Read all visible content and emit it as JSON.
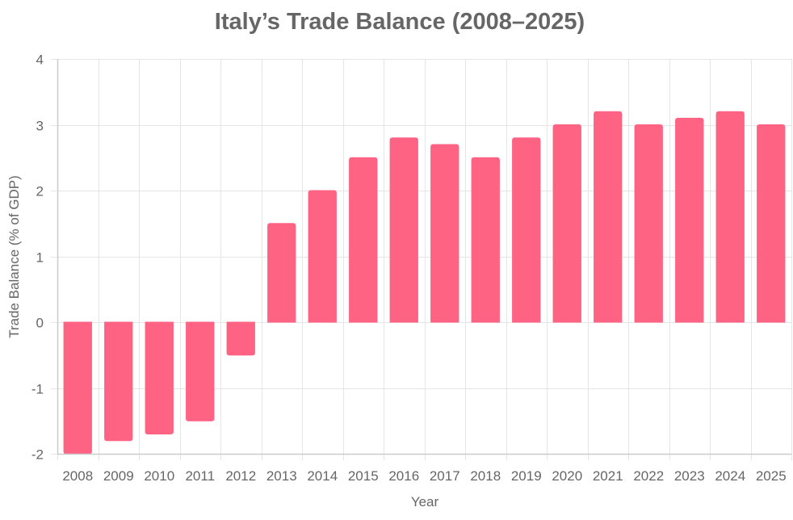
{
  "chart_data": {
    "type": "bar",
    "title": "Italy’s Trade Balance (2008–2025)",
    "xlabel": "Year",
    "ylabel": "Trade Balance (% of GDP)",
    "categories": [
      "2008",
      "2009",
      "2010",
      "2011",
      "2012",
      "2013",
      "2014",
      "2015",
      "2016",
      "2017",
      "2018",
      "2019",
      "2020",
      "2021",
      "2022",
      "2023",
      "2024",
      "2025"
    ],
    "values": [
      -2.0,
      -1.8,
      -1.7,
      -1.5,
      -0.5,
      1.5,
      2.0,
      2.5,
      2.8,
      2.7,
      2.5,
      2.8,
      3.0,
      3.2,
      3.0,
      3.1,
      3.2,
      3.0
    ],
    "ylim": [
      -2,
      4
    ],
    "yticks": [
      -2,
      -1,
      0,
      1,
      2,
      3,
      4
    ],
    "grid": true,
    "colors": {
      "bar_fill": "#ff6384",
      "bar_stroke": "#ff6384",
      "grid": "#e5e5e5",
      "axis": "#cccccc",
      "title": "#666666",
      "text": "#666666"
    }
  }
}
